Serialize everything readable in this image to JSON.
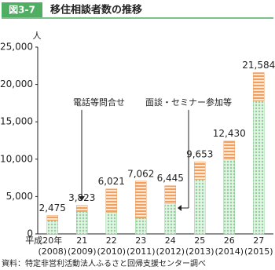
{
  "figure_label": "図3-7",
  "chart_data": {
    "type": "stacked-bar",
    "title": "移住相談者数の推移",
    "y_unit": "人",
    "categories": [
      "平成20年",
      "21",
      "22",
      "23",
      "24",
      "25",
      "26",
      "27"
    ],
    "category_years": [
      "(2008)",
      "(2009)",
      "(2010)",
      "(2011)",
      "(2012)",
      "(2013)",
      "(2014)",
      "(2015)"
    ],
    "series": [
      {
        "name": "面談・セミナー参加等",
        "color": "#8fcf9a",
        "values": [
          1800,
          3000,
          2900,
          2100,
          4100,
          7300,
          10000,
          17800
        ]
      },
      {
        "name": "電話等問合せ",
        "color": "#f0a060",
        "values": [
          675,
          823,
          3121,
          4962,
          2345,
          2353,
          2430,
          3784
        ]
      }
    ],
    "totals": [
      2475,
      3823,
      6021,
      7062,
      6445,
      9653,
      12430,
      21584
    ],
    "totals_labels": [
      "2,475",
      "3,823",
      "6,021",
      "7,062",
      "6,445",
      "9,653",
      "12,430",
      "21,584"
    ],
    "ylim": [
      0,
      25000
    ],
    "yticks": [
      0,
      {
        "value": 5000,
        "label": "5,000"
      },
      {
        "value": 10000,
        "label": "10,000"
      },
      {
        "value": 15000,
        "label": "15,000"
      },
      {
        "value": 20000,
        "label": "20,000"
      },
      {
        "value": 25000,
        "label": "25,000"
      }
    ]
  },
  "source": "資料：特定非営利活動法人ふるさと回帰支援センター調べ"
}
